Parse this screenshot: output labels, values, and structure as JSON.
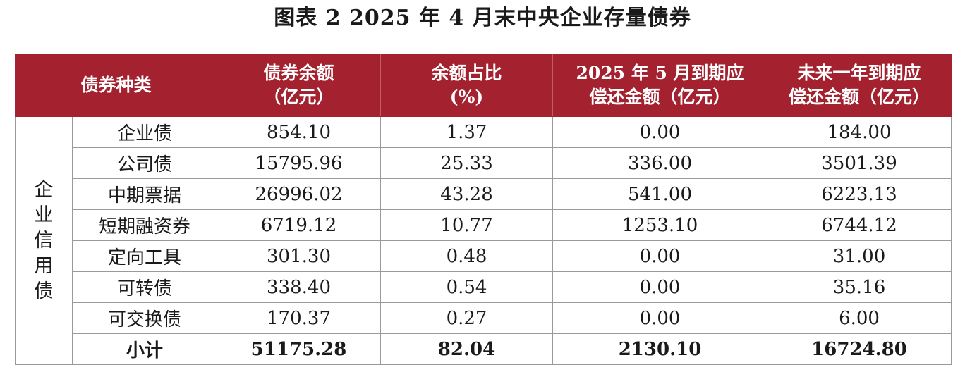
{
  "title": "图表 2  2025 年 4 月末中央企业存量债券",
  "headers": {
    "type": "债券种类",
    "balance_l1": "债券余额",
    "balance_l2": "（亿元）",
    "share_l1": "余额占比",
    "share_l2": "(%)",
    "may_l1": "2025 年 5 月到期应",
    "may_l2": "偿还金额（亿元）",
    "year_l1": "未来一年到期应",
    "year_l2": "偿还金额（亿元）"
  },
  "group_label": [
    "企",
    "业",
    "信",
    "用",
    "债"
  ],
  "rows": [
    {
      "name": "企业债",
      "balance": "854.10",
      "share": "1.37",
      "may": "0.00",
      "year": "184.00"
    },
    {
      "name": "公司债",
      "balance": "15795.96",
      "share": "25.33",
      "may": "336.00",
      "year": "3501.39"
    },
    {
      "name": "中期票据",
      "balance": "26996.02",
      "share": "43.28",
      "may": "541.00",
      "year": "6223.13"
    },
    {
      "name": "短期融资券",
      "balance": "6719.12",
      "share": "10.77",
      "may": "1253.10",
      "year": "6744.12"
    },
    {
      "name": "定向工具",
      "balance": "301.30",
      "share": "0.48",
      "may": "0.00",
      "year": "31.00"
    },
    {
      "name": "可转债",
      "balance": "338.40",
      "share": "0.54",
      "may": "0.00",
      "year": "35.16"
    },
    {
      "name": "可交换债",
      "balance": "170.37",
      "share": "0.27",
      "may": "0.00",
      "year": "6.00"
    }
  ],
  "total": {
    "name": "小计",
    "balance": "51175.28",
    "share": "82.04",
    "may": "2130.10",
    "year": "16724.80"
  }
}
